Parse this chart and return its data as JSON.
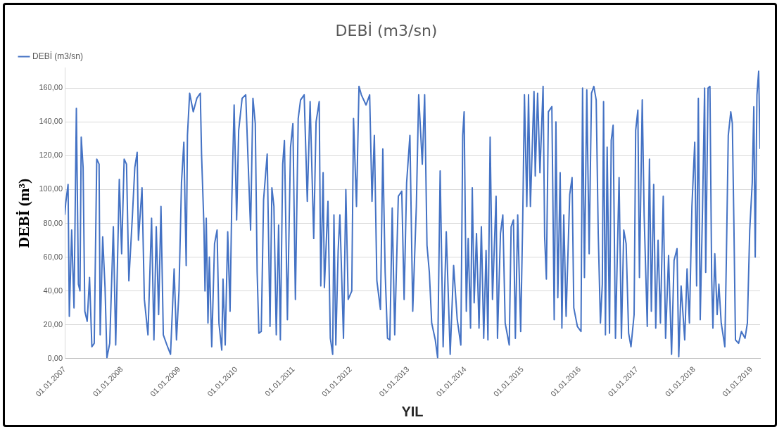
{
  "chart_data": {
    "type": "line",
    "title": "DEBİ (m3/sn)",
    "xlabel": "YIL",
    "ylabel": "DEBİ (m³)",
    "xlim": [
      "2007-01-01",
      "2019-02-25"
    ],
    "xticks": [
      {
        "value": "2007-01-01",
        "label": "01.01.2007"
      },
      {
        "value": "2008-01-01",
        "label": "01.01.2008"
      },
      {
        "value": "2009-01-01",
        "label": "01.01.2009"
      },
      {
        "value": "2010-01-01",
        "label": "01.01.2010"
      },
      {
        "value": "2011-01-01",
        "label": "01.01.2011"
      },
      {
        "value": "2012-01-01",
        "label": "01.01.2012"
      },
      {
        "value": "2013-01-01",
        "label": "01.01.2013"
      },
      {
        "value": "2014-01-01",
        "label": "01.01.2014"
      },
      {
        "value": "2015-01-01",
        "label": "01.01.2015"
      },
      {
        "value": "2016-01-01",
        "label": "01.01.2016"
      },
      {
        "value": "2017-01-01",
        "label": "01.01.2017"
      },
      {
        "value": "2018-01-01",
        "label": "01.01.2018"
      },
      {
        "value": "2019-01-01",
        "label": "01.01.2019"
      }
    ],
    "ylim": [
      0,
      172
    ],
    "yticks": [
      {
        "value": 0,
        "label": "0,00"
      },
      {
        "value": 20,
        "label": "20,00"
      },
      {
        "value": 40,
        "label": "40,00"
      },
      {
        "value": 60,
        "label": "60,00"
      },
      {
        "value": 80,
        "label": "80,00"
      },
      {
        "value": 100,
        "label": "100,00"
      },
      {
        "value": 120,
        "label": "120,00"
      },
      {
        "value": 140,
        "label": "140,00"
      },
      {
        "value": 160,
        "label": "160,00"
      }
    ],
    "grid": "y",
    "legend": "top left",
    "marker": "none",
    "line_style": "solid",
    "x": [
      "2007-01-01",
      "2007-01-07",
      "2007-01-22",
      "2007-01-30",
      "2007-02-14",
      "2007-03-01",
      "2007-03-16",
      "2007-03-29",
      "2007-04-08",
      "2007-04-16",
      "2007-04-28",
      "2007-05-09",
      "2007-05-24",
      "2007-06-08",
      "2007-06-23",
      "2007-07-08",
      "2007-07-24",
      "2007-08-08",
      "2007-08-15",
      "2007-08-31",
      "2007-09-15",
      "2007-09-27",
      "2007-10-15",
      "2007-11-07",
      "2007-11-22",
      "2007-12-15",
      "2007-12-30",
      "2008-01-15",
      "2008-01-30",
      "2008-02-14",
      "2008-03-08",
      "2008-03-23",
      "2008-04-07",
      "2008-04-15",
      "2008-05-08",
      "2008-05-23",
      "2008-06-15",
      "2008-07-08",
      "2008-07-23",
      "2008-08-07",
      "2008-08-22",
      "2008-09-06",
      "2008-09-21",
      "2008-10-14",
      "2008-11-06",
      "2008-11-29",
      "2008-12-14",
      "2008-12-30",
      "2009-01-15",
      "2009-01-30",
      "2009-02-14",
      "2009-02-22",
      "2009-03-08",
      "2009-03-31",
      "2009-04-23",
      "2009-05-15",
      "2009-05-23",
      "2009-06-07",
      "2009-06-14",
      "2009-06-22",
      "2009-07-03",
      "2009-07-12",
      "2009-07-27",
      "2009-08-14",
      "2009-08-30",
      "2009-09-11",
      "2009-09-29",
      "2009-10-07",
      "2009-10-21",
      "2009-11-06",
      "2009-11-21",
      "2009-12-02",
      "2009-12-17",
      "2010-01-02",
      "2010-01-15",
      "2010-02-06",
      "2010-03-01",
      "2010-04-01",
      "2010-04-16",
      "2010-05-01",
      "2010-05-13",
      "2010-05-24",
      "2010-06-08",
      "2010-06-23",
      "2010-07-16",
      "2010-08-03",
      "2010-08-15",
      "2010-08-28",
      "2010-09-12",
      "2010-09-27",
      "2010-10-08",
      "2010-10-23",
      "2010-11-03",
      "2010-11-22",
      "2010-12-12",
      "2010-12-27",
      "2011-01-12",
      "2011-01-30",
      "2011-02-14",
      "2011-03-09",
      "2011-03-29",
      "2011-04-16",
      "2011-05-09",
      "2011-05-24",
      "2011-06-13",
      "2011-06-23",
      "2011-07-08",
      "2011-07-16",
      "2011-08-08",
      "2011-08-23",
      "2011-09-07",
      "2011-09-15",
      "2011-09-27",
      "2011-10-12",
      "2011-10-23",
      "2011-11-15",
      "2011-11-30",
      "2011-12-15",
      "2012-01-07",
      "2012-01-18",
      "2012-02-06",
      "2012-02-22",
      "2012-03-08",
      "2012-04-07",
      "2012-04-30",
      "2012-05-15",
      "2012-05-30",
      "2012-06-15",
      "2012-07-08",
      "2012-07-23",
      "2012-08-07",
      "2012-08-22",
      "2012-09-06",
      "2012-09-21",
      "2012-10-07",
      "2012-10-30",
      "2012-11-21",
      "2012-12-06",
      "2012-12-22",
      "2013-01-12",
      "2013-01-30",
      "2013-02-22",
      "2013-03-09",
      "2013-04-01",
      "2013-04-16",
      "2013-05-01",
      "2013-05-16",
      "2013-05-31",
      "2013-06-23",
      "2013-07-08",
      "2013-07-24",
      "2013-08-12",
      "2013-09-01",
      "2013-09-26",
      "2013-10-18",
      "2013-11-10",
      "2013-12-03",
      "2013-12-15",
      "2013-12-24",
      "2014-01-07",
      "2014-01-19",
      "2014-02-03",
      "2014-02-14",
      "2014-02-26",
      "2014-03-13",
      "2014-03-29",
      "2014-04-13",
      "2014-04-28",
      "2014-05-13",
      "2014-05-25",
      "2014-06-08",
      "2014-06-23",
      "2014-07-16",
      "2014-07-25",
      "2014-08-13",
      "2014-08-28",
      "2014-09-12",
      "2014-10-08",
      "2014-10-20",
      "2014-11-04",
      "2014-11-16",
      "2014-12-01",
      "2014-12-20",
      "2015-01-02",
      "2015-01-13",
      "2015-01-28",
      "2015-02-08",
      "2015-02-20",
      "2015-03-15",
      "2015-03-23",
      "2015-04-07",
      "2015-04-22",
      "2015-05-12",
      "2015-05-22",
      "2015-06-02",
      "2015-06-15",
      "2015-07-07",
      "2015-07-22",
      "2015-08-02",
      "2015-08-14",
      "2015-08-29",
      "2015-09-09",
      "2015-09-21",
      "2015-10-06",
      "2015-10-29",
      "2015-11-13",
      "2015-11-24",
      "2015-12-17",
      "2016-01-09",
      "2016-01-19",
      "2016-01-31",
      "2016-02-15",
      "2016-03-01",
      "2016-03-16",
      "2016-03-31",
      "2016-04-15",
      "2016-04-28",
      "2016-05-12",
      "2016-05-24",
      "2016-06-01",
      "2016-06-13",
      "2016-06-24",
      "2016-07-09",
      "2016-07-20",
      "2016-08-01",
      "2016-08-16",
      "2016-09-08",
      "2016-09-23",
      "2016-10-08",
      "2016-10-23",
      "2016-11-08",
      "2016-11-23",
      "2016-12-13",
      "2016-12-23",
      "2017-01-06",
      "2017-01-16",
      "2017-02-03",
      "2017-02-15",
      "2017-03-07",
      "2017-03-21",
      "2017-04-02",
      "2017-04-17",
      "2017-04-30",
      "2017-05-15",
      "2017-05-30",
      "2017-06-17",
      "2017-07-02",
      "2017-07-21",
      "2017-08-09",
      "2017-08-25",
      "2017-09-13",
      "2017-09-24",
      "2017-10-09",
      "2017-11-01",
      "2017-11-16",
      "2017-12-01",
      "2017-12-17",
      "2018-01-04",
      "2018-01-16",
      "2018-01-27",
      "2018-02-08",
      "2018-02-23",
      "2018-03-08",
      "2018-03-15",
      "2018-03-30",
      "2018-04-11",
      "2018-04-22",
      "2018-04-30",
      "2018-05-12",
      "2018-05-27",
      "2018-06-07",
      "2018-06-22",
      "2018-07-07",
      "2018-07-15",
      "2018-07-25",
      "2018-08-06",
      "2018-08-22",
      "2018-09-01",
      "2018-09-11",
      "2018-09-21",
      "2018-10-11",
      "2018-10-29",
      "2018-11-21",
      "2018-12-06",
      "2018-12-21",
      "2019-01-06",
      "2019-01-16",
      "2019-01-25",
      "2019-02-05",
      "2019-02-16",
      "2019-02-25"
    ],
    "series": [
      {
        "name": "DEBİ (m3/sn)",
        "color": "#4472c4",
        "values": [
          85,
          92,
          103,
          25,
          76,
          30,
          148,
          44,
          40,
          131,
          113,
          28,
          22,
          48,
          7,
          9,
          118,
          115,
          14,
          72,
          42,
          0.5,
          9,
          78,
          8,
          106,
          62,
          118,
          115,
          46,
          85,
          113,
          122,
          70,
          101,
          35,
          14,
          83,
          11,
          78,
          26,
          90,
          14,
          8,
          2.5,
          53,
          11,
          40,
          104,
          128,
          55,
          132,
          157,
          146,
          154,
          157,
          121,
          79,
          40,
          83,
          21,
          60,
          7,
          68,
          76,
          21,
          5,
          47,
          8,
          75,
          28,
          93,
          150,
          82,
          135,
          154,
          156,
          76,
          154,
          139,
          51,
          15,
          16,
          94,
          121,
          19,
          101,
          90,
          14,
          79,
          11,
          115,
          129,
          23,
          125,
          139,
          35,
          142,
          153,
          156,
          93,
          152,
          71,
          140,
          152,
          43,
          110,
          42,
          93,
          12,
          2.5,
          85,
          8,
          64,
          85,
          12,
          100,
          35,
          40,
          142,
          90,
          161,
          156,
          150,
          156,
          93,
          132,
          46,
          29,
          124,
          51,
          12,
          11,
          89,
          14,
          96,
          99,
          35,
          104,
          132,
          28,
          90,
          156,
          115,
          156,
          67,
          51,
          21,
          11,
          0.5,
          111,
          7,
          75,
          2.5,
          55,
          23,
          8,
          132,
          146,
          28,
          71,
          18,
          101,
          33,
          74,
          18,
          78,
          12,
          64,
          11,
          131,
          35,
          96,
          12,
          74,
          85,
          21,
          8,
          78,
          82,
          12,
          85,
          16,
          82,
          156,
          90,
          156,
          90,
          158,
          108,
          157,
          110,
          161,
          72,
          47,
          146,
          149,
          23,
          140,
          36,
          110,
          18,
          85,
          25,
          97,
          107,
          30,
          19,
          16,
          160,
          48,
          159,
          62,
          157,
          161,
          153,
          74,
          21,
          44,
          152,
          14,
          125,
          15,
          129,
          138,
          12,
          107,
          12,
          76,
          68,
          15,
          7,
          26,
          135,
          147,
          48,
          153,
          85,
          19,
          118,
          28,
          103,
          18,
          70,
          21,
          96,
          12,
          61,
          2.5,
          58,
          65,
          1,
          43,
          11,
          53,
          21,
          90,
          128,
          43,
          154,
          23,
          90,
          160,
          51,
          160,
          161,
          48,
          18,
          62,
          26,
          44,
          21,
          12,
          7,
          60,
          132,
          146,
          139,
          79,
          11,
          9,
          16,
          12,
          21,
          76,
          104,
          149,
          60,
          156,
          170,
          124
        ]
      }
    ]
  }
}
